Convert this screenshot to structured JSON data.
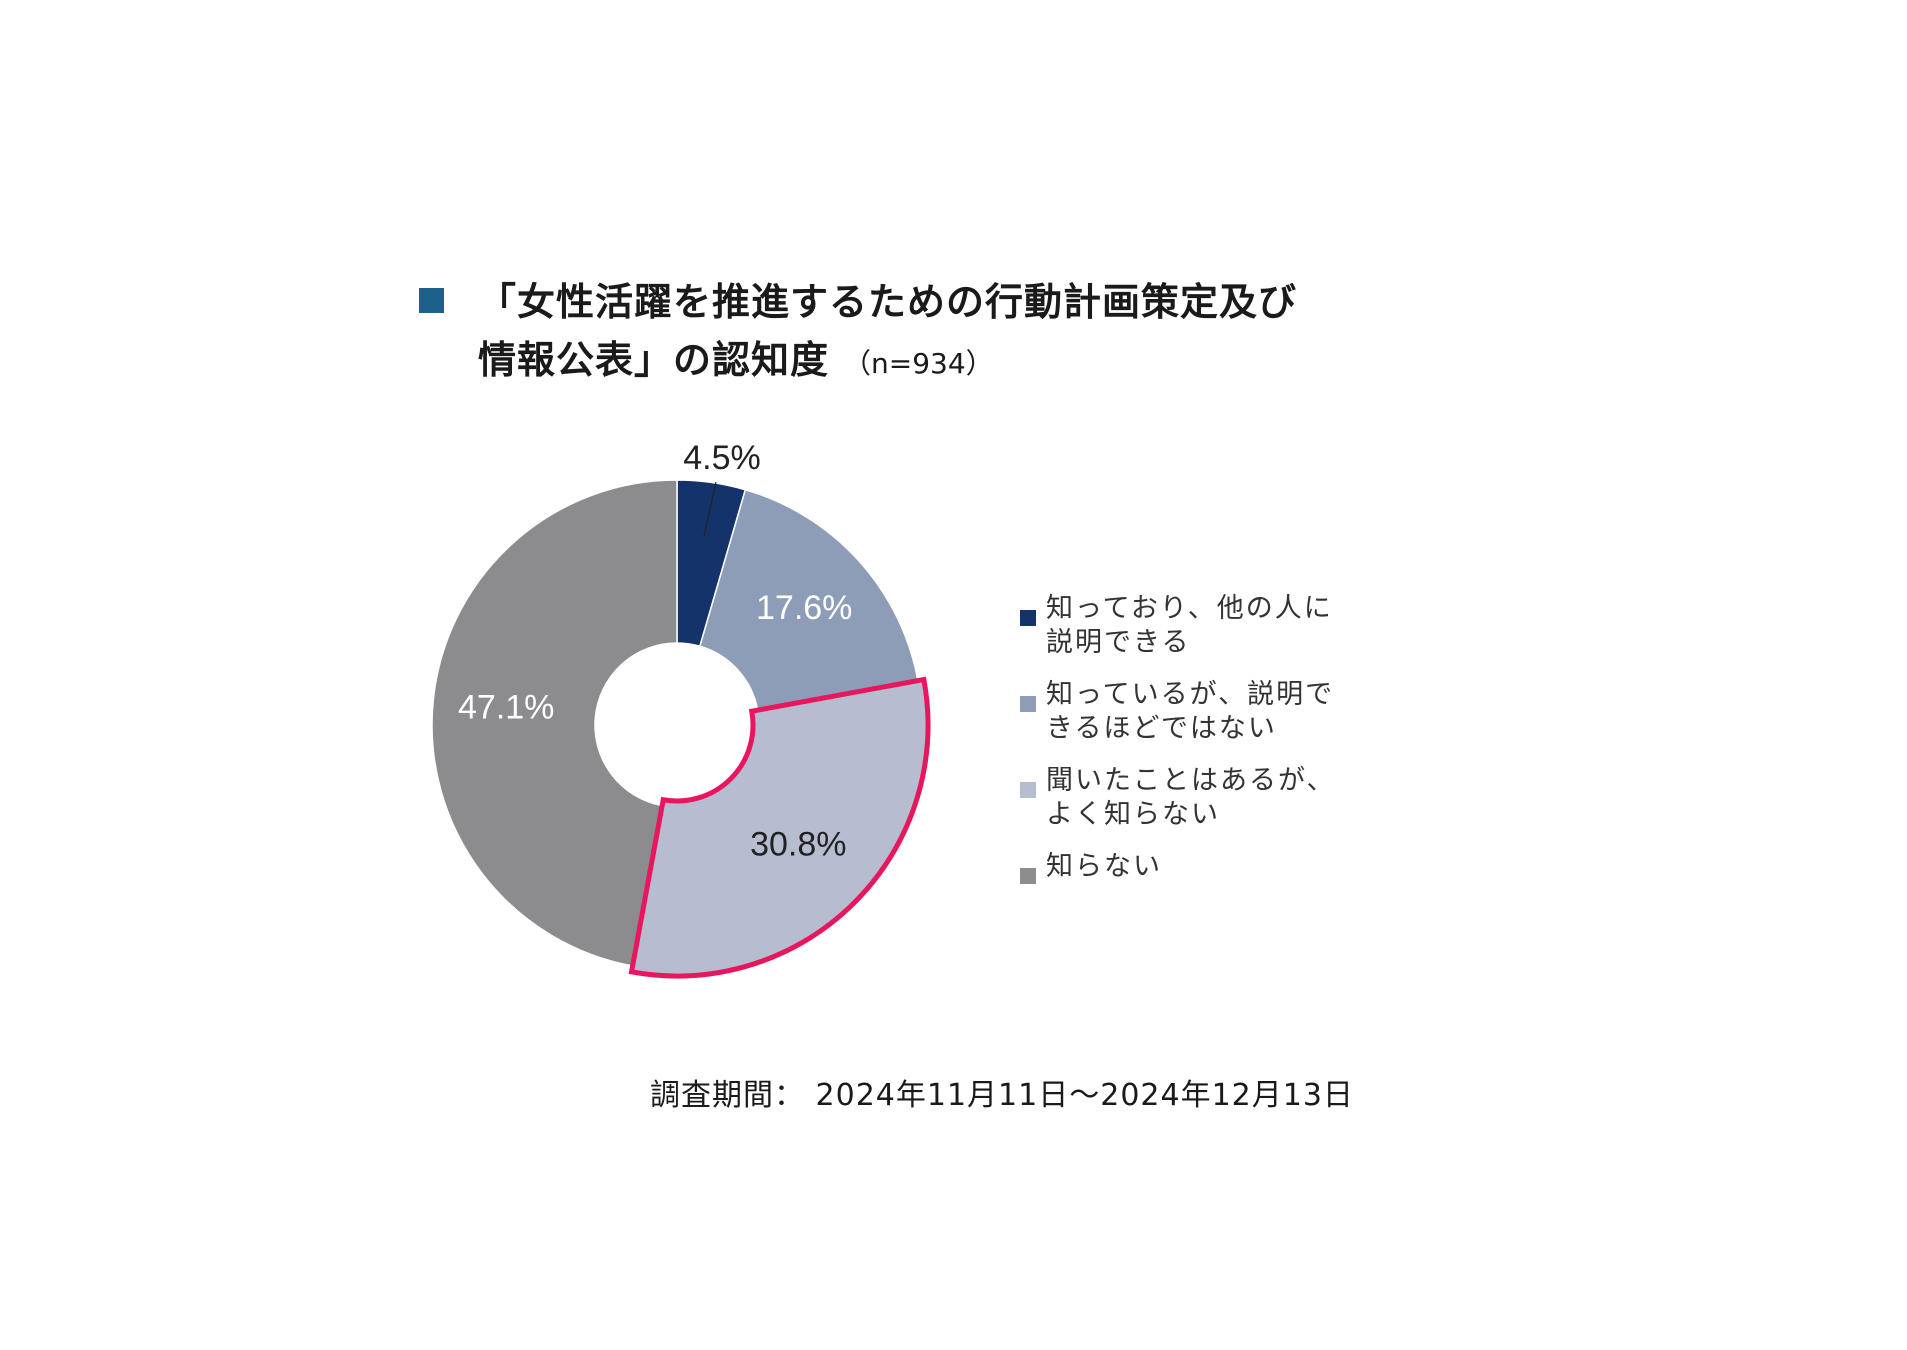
{
  "title": {
    "line1": "「女性活躍を推進するための行動計画策定及び",
    "line2": "情報公表」の認知度",
    "sample": "（n=934）",
    "marker_color": "#1b6189"
  },
  "chart_data": {
    "type": "pie",
    "donut": true,
    "start_angle_deg": 0,
    "direction": "clockwise",
    "categories": [
      "知っており、他の人に説明できる",
      "知っているが、説明できるほどではない",
      "聞いたことはあるが、よく知らない",
      "知らない"
    ],
    "values": [
      4.5,
      17.6,
      30.8,
      47.1
    ],
    "unit": "%",
    "data_labels": [
      "4.5%",
      "17.6%",
      "30.8%",
      "47.1%"
    ],
    "colors": [
      "#13336a",
      "#8d9db8",
      "#b6bdd1",
      "#8c8b8e"
    ],
    "label_colors": [
      "#222222",
      "#ffffff",
      "#222222",
      "#ffffff"
    ],
    "highlight": {
      "index": 2,
      "color": "#e8175d"
    },
    "legend_position": "right"
  },
  "legend": [
    {
      "line1": "知っており、他の人に",
      "line2": "説明できる"
    },
    {
      "line1": "知っているが、説明で",
      "line2": "きるほどではない"
    },
    {
      "line1": "聞いたことはあるが、",
      "line2": "よく知らない"
    },
    {
      "line1": "知らない",
      "line2": ""
    }
  ],
  "footnote": "調査期間： 2024年11月11日～2024年12月13日"
}
